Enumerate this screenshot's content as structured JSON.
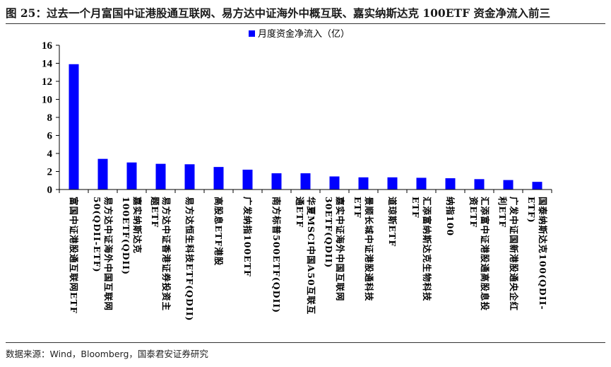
{
  "figure": {
    "title": "图 25：过去一个月富国中证港股通互联网、易方达中证海外中概互联、嘉实纳斯达克 100ETF 资金净流入前三",
    "source": "数据来源：Wind，Bloomberg，国泰君安证券研究"
  },
  "chart_data": {
    "type": "bar",
    "legend": {
      "label": "月度资金净流入（亿）",
      "position": "top-center"
    },
    "colors": {
      "bar": "#0000ff",
      "axis": "#000000"
    },
    "ylim": [
      0,
      16
    ],
    "yticks": [
      0,
      2,
      4,
      6,
      8,
      10,
      12,
      14,
      16
    ],
    "grid": false,
    "categories": [
      {
        "lines": [
          "富国中证港股通互联网ETF"
        ]
      },
      {
        "lines": [
          "易方达中证海外中国互联网",
          "50(QDII-ETF)"
        ]
      },
      {
        "lines": [
          "嘉实纳斯达克",
          "100ETF(QDII)"
        ]
      },
      {
        "lines": [
          "易方达中证香港证券投资主",
          "题ETF"
        ]
      },
      {
        "lines": [
          "易方达恒生科技ETF(QDII)"
        ]
      },
      {
        "lines": [
          "高股息ETF港股"
        ]
      },
      {
        "lines": [
          "广发纳指100ETF"
        ]
      },
      {
        "lines": [
          "南方标普500ETF(QDII)"
        ]
      },
      {
        "lines": [
          "华夏MSCI中国A50互联互",
          "通ETF"
        ]
      },
      {
        "lines": [
          "嘉实中证海外中国互联网",
          "30ETF(QDII)"
        ]
      },
      {
        "lines": [
          "景顺长城中证港股通科技",
          "ETF"
        ]
      },
      {
        "lines": [
          "道琼斯ETF"
        ]
      },
      {
        "lines": [
          "汇添富纳斯达克生物科技",
          "ETF"
        ]
      },
      {
        "lines": [
          "纳指100"
        ]
      },
      {
        "lines": [
          "汇添富中证港股通高股息投",
          "资ETF"
        ]
      },
      {
        "lines": [
          "广发中证国新港股通央企红",
          "利ETF"
        ]
      },
      {
        "lines": [
          "国泰纳斯达克100(QDII-",
          "ETF)"
        ]
      }
    ],
    "values": [
      13.9,
      3.4,
      3.0,
      2.85,
      2.8,
      2.5,
      2.2,
      1.8,
      1.8,
      1.45,
      1.35,
      1.35,
      1.3,
      1.25,
      1.15,
      1.05,
      0.85
    ]
  }
}
